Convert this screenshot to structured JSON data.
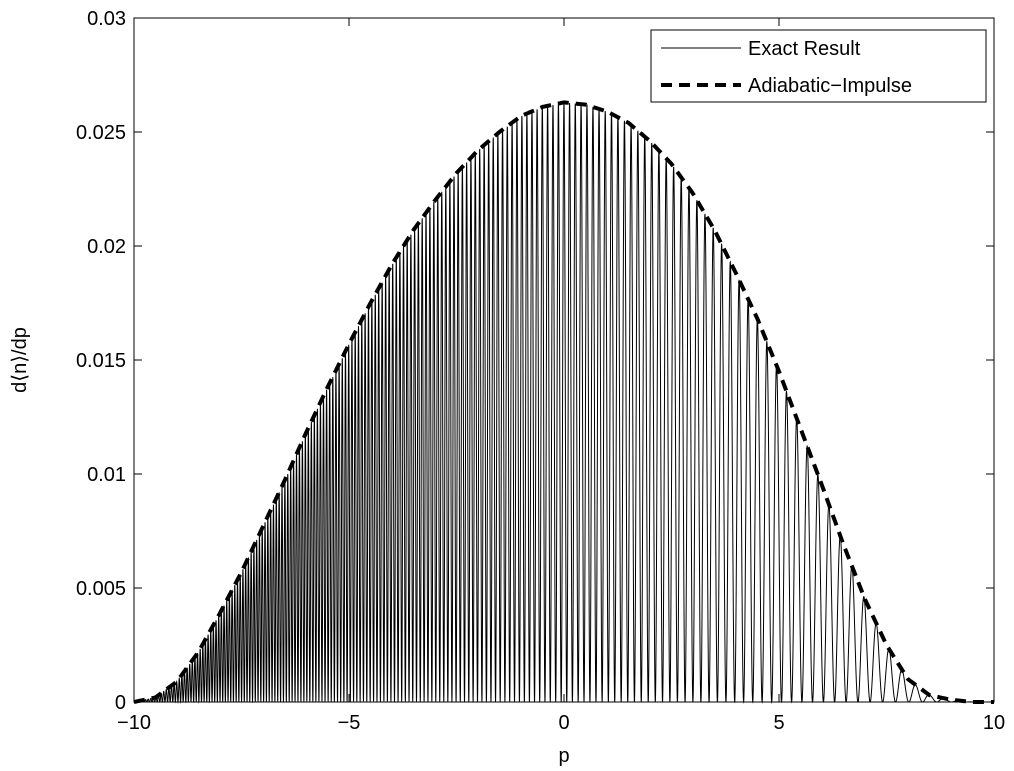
{
  "chart_data": {
    "type": "line",
    "title": "",
    "xlabel": "p",
    "ylabel": "d⟨n⟩/dp",
    "xlim": [
      -10,
      10
    ],
    "ylim": [
      0,
      0.03
    ],
    "x_ticks": [
      -10,
      -5,
      0,
      5,
      10
    ],
    "x_tick_labels": [
      "−10",
      "−5",
      "0",
      "5",
      "10"
    ],
    "y_ticks": [
      0,
      0.005,
      0.01,
      0.015,
      0.02,
      0.025,
      0.03
    ],
    "y_tick_labels": [
      "0",
      "0.005",
      "0.01",
      "0.015",
      "0.02",
      "0.025",
      "0.03"
    ],
    "grid": false,
    "legend_position": "top-right",
    "legend": [
      "Exact Result",
      "Adiabatic−Impulse"
    ],
    "series": [
      {
        "name": "Adiabatic−Impulse",
        "style": "dashed-thick",
        "color": "#000000",
        "x": [
          -10,
          -9.5,
          -9,
          -8.5,
          -8,
          -7.5,
          -7,
          -6.5,
          -6,
          -5.5,
          -5,
          -4.5,
          -4,
          -3.5,
          -3,
          -2.5,
          -2,
          -1.5,
          -1,
          -0.5,
          0,
          0.5,
          1,
          1.5,
          2,
          2.5,
          3,
          3.5,
          4,
          4.5,
          5,
          5.5,
          6,
          6.5,
          7,
          7.5,
          8,
          8.5,
          9,
          9.5,
          10
        ],
        "y": [
          0,
          0.0002,
          0.0009,
          0.0022,
          0.0039,
          0.0057,
          0.0077,
          0.0097,
          0.0118,
          0.0138,
          0.0157,
          0.0175,
          0.0192,
          0.0207,
          0.022,
          0.0232,
          0.0242,
          0.025,
          0.0257,
          0.0261,
          0.0263,
          0.0262,
          0.0259,
          0.0254,
          0.0246,
          0.0236,
          0.0223,
          0.0207,
          0.0188,
          0.0168,
          0.0145,
          0.012,
          0.0095,
          0.0069,
          0.0045,
          0.0025,
          0.001,
          0.0003,
          0.0001,
          0,
          0
        ]
      },
      {
        "name": "Exact Result",
        "style": "solid-thin",
        "color": "#000000",
        "oscillation_period_p": [
          0.06,
          0.38
        ],
        "envelope": "Adiabatic−Impulse"
      }
    ]
  }
}
